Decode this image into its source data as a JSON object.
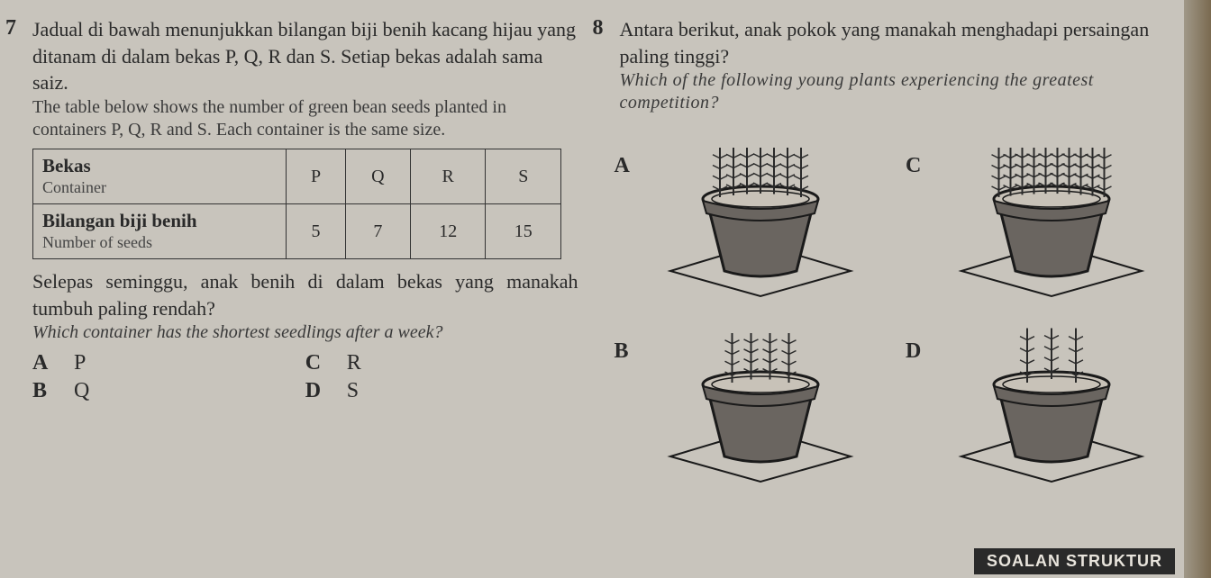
{
  "q7": {
    "number": "7",
    "text_ms_1": "Jadual di bawah menunjukkan bilangan biji benih kacang hijau yang ditanam di dalam bekas P, Q, R dan S. Setiap bekas adalah sama saiz.",
    "text_en_1": "The table below shows the number of green bean seeds planted in containers P, Q, R and S. Each container is the same size.",
    "table": {
      "row1_label_bold": "Bekas",
      "row1_label_sub": "Container",
      "row2_label_bold": "Bilangan biji benih",
      "row2_label_sub": "Number of seeds",
      "cols": [
        "P",
        "Q",
        "R",
        "S"
      ],
      "values": [
        "5",
        "7",
        "12",
        "15"
      ]
    },
    "text_ms_2": "Selepas seminggu, anak benih di dalam bekas yang manakah tumbuh paling rendah?",
    "text_en_2": "Which container has the shortest seedlings after a week?",
    "options": {
      "A": "P",
      "B": "Q",
      "C": "R",
      "D": "S"
    }
  },
  "q8": {
    "number": "8",
    "text_ms": "Antara berikut, anak pokok yang manakah menghadapi persaingan paling tinggi?",
    "text_en": "Which of the following young plants experiencing the greatest competition?",
    "options": [
      "A",
      "C",
      "B",
      "D"
    ],
    "plants": {
      "A": {
        "count": 7,
        "height": 1.0,
        "spread": 1.0
      },
      "C": {
        "count": 10,
        "height": 1.0,
        "spread": 1.3
      },
      "B": {
        "count": 4,
        "height": 1.0,
        "spread": 0.7
      },
      "D": {
        "count": 3,
        "height": 1.1,
        "spread": 0.6
      }
    },
    "colors": {
      "pot_fill": "#6a6560",
      "pot_stroke": "#1a1a1a",
      "soil": "#c8c2b8",
      "plant": "#2a2a2a",
      "base": "#888480"
    }
  },
  "footer": "SOALAN STRUKTUR"
}
